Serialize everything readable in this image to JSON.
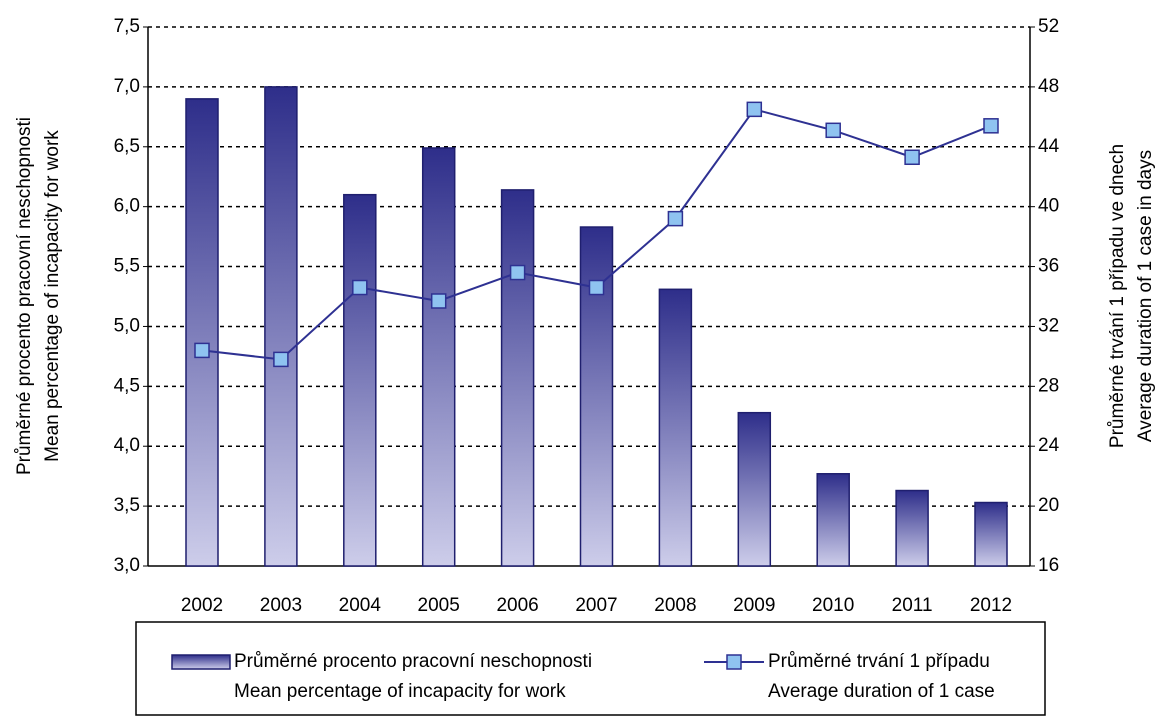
{
  "chart_data": {
    "type": "bar_line",
    "categories": [
      "2002",
      "2003",
      "2004",
      "2005",
      "2006",
      "2007",
      "2008",
      "2009",
      "2010",
      "2011",
      "2012"
    ],
    "y_label": [
      "Průměrné procento pracovní neschopnosti",
      "Mean percentage of incapacity for work"
    ],
    "y2_label": [
      "Průměrné trvání 1 případu ve dnech",
      "Average duration of 1 case in days"
    ],
    "series": [
      {
        "name": [
          "Průměrné procento pracovní neschopnosti",
          "Mean percentage of incapacity for work"
        ],
        "type": "bar",
        "color": "#2e2e8a",
        "values": [
          6.9,
          7.0,
          6.1,
          6.49,
          6.14,
          5.83,
          5.31,
          4.28,
          3.77,
          3.63,
          3.53
        ]
      },
      {
        "name": [
          "Průměrné trvání 1 případu",
          "Average duration of 1 case"
        ],
        "type": "line",
        "axis": "y2",
        "color": "#2e3192",
        "marker_color": "#8fc3f0",
        "values": [
          30.4,
          29.8,
          34.6,
          33.7,
          35.6,
          34.6,
          39.2,
          46.5,
          45.1,
          43.3,
          45.4
        ]
      }
    ],
    "ylim": [
      3.0,
      7.5
    ],
    "yticks": [
      {
        "value": 3.0,
        "label": "3,0"
      },
      {
        "value": 3.5,
        "label": "3,5"
      },
      {
        "value": 4.0,
        "label": "4,0"
      },
      {
        "value": 4.5,
        "label": "4,5"
      },
      {
        "value": 5.0,
        "label": "5,0"
      },
      {
        "value": 5.5,
        "label": "5,5"
      },
      {
        "value": 6.0,
        "label": "6,0"
      },
      {
        "value": 6.5,
        "label": "6,5"
      },
      {
        "value": 7.0,
        "label": "7,0"
      },
      {
        "value": 7.5,
        "label": "7,5"
      }
    ],
    "y2lim": [
      16,
      52
    ],
    "y2ticks": [
      16,
      20,
      24,
      28,
      32,
      36,
      40,
      44,
      48,
      52
    ],
    "grid": true
  }
}
